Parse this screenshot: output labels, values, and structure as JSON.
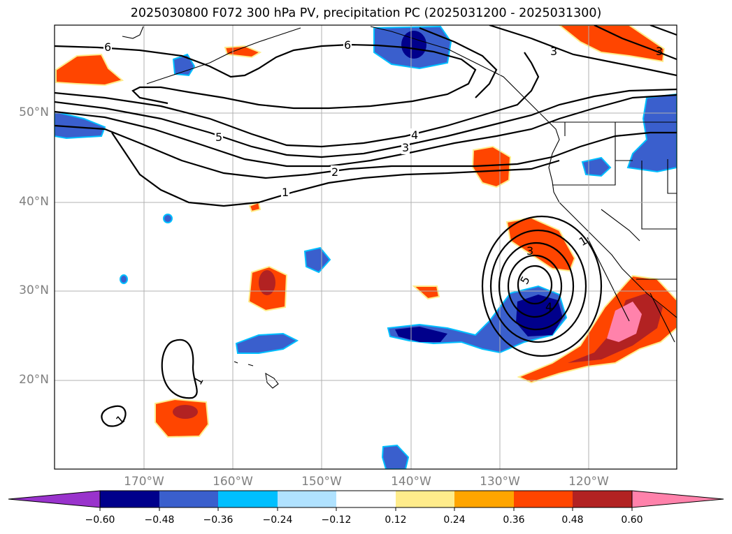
{
  "title": "2025030800 F072 300 hPa PV, precipitation PC (2025031200 - 2025031300)",
  "lat_labels": [
    "50°N",
    "40°N",
    "30°N",
    "20°N"
  ],
  "lon_labels": [
    "170°W",
    "160°W",
    "150°W",
    "140°W",
    "130°W",
    "120°W"
  ],
  "contour_labels": {
    "pv6_west": "6",
    "pv6_east": "6",
    "pv5": "5",
    "pv4": "4",
    "pv3": "3",
    "pv2": "2",
    "pv1": "1",
    "pv3_ne": "3",
    "pv3_ne2": "3",
    "cutoff_1": "1",
    "cutoff_3": "3",
    "cutoff_5": "5",
    "cutoff_4": "4",
    "loop_1a": "1",
    "loop_1b": "1"
  },
  "colorbar": {
    "ticks": [
      "−0.60",
      "−0.48",
      "−0.36",
      "−0.24",
      "−0.12",
      "0.12",
      "0.24",
      "0.36",
      "0.48",
      "0.60"
    ],
    "colors": [
      "#9933cc",
      "#00008b",
      "#3a5fcd",
      "#00bfff",
      "#b0e2ff",
      "#ffffff",
      "#ffec8b",
      "#ffa500",
      "#ff4500",
      "#b22222",
      "#ff82ab"
    ]
  }
}
